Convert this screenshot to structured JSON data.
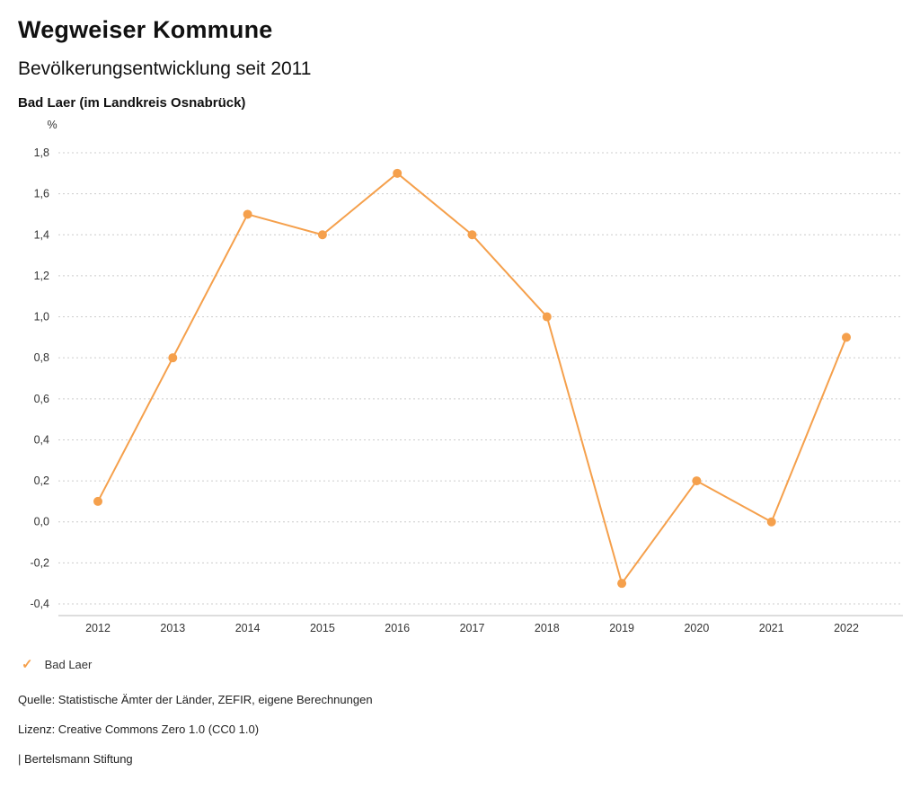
{
  "header": {
    "title": "Wegweiser Kommune",
    "subtitle": "Bevölkerungsentwicklung seit 2011",
    "region": "Bad Laer (im Landkreis Osnabrück)"
  },
  "chart_data": {
    "type": "line",
    "title": "Bevölkerungsentwicklung seit 2011",
    "unit_label": "%",
    "xlabel": "",
    "ylabel": "%",
    "x": [
      2012,
      2013,
      2014,
      2015,
      2016,
      2017,
      2018,
      2019,
      2020,
      2021,
      2022
    ],
    "series": [
      {
        "name": "Bad Laer",
        "values": [
          0.1,
          0.8,
          1.5,
          1.4,
          1.7,
          1.4,
          1.0,
          -0.3,
          0.2,
          0.0,
          0.9
        ],
        "color": "#f5a04c"
      }
    ],
    "ylim": [
      -0.4,
      1.8
    ],
    "ytick_step": 0.2,
    "ytick_labels": [
      "1,8",
      "1,6",
      "1,4",
      "1,2",
      "1,0",
      "0,8",
      "0,6",
      "0,4",
      "0,2",
      "0,0",
      "-0,2",
      "-0,4"
    ],
    "grid": true,
    "grid_style": "dotted",
    "legend_position": "bottom"
  },
  "legend": {
    "check_icon": "✓",
    "label": "Bad Laer",
    "color": "#f5a04c"
  },
  "footer": {
    "source": "Quelle: Statistische Ämter der Länder, ZEFIR, eigene Berechnungen",
    "license": "Lizenz: Creative Commons Zero 1.0 (CC0 1.0)",
    "attribution": "| Bertelsmann Stiftung"
  }
}
